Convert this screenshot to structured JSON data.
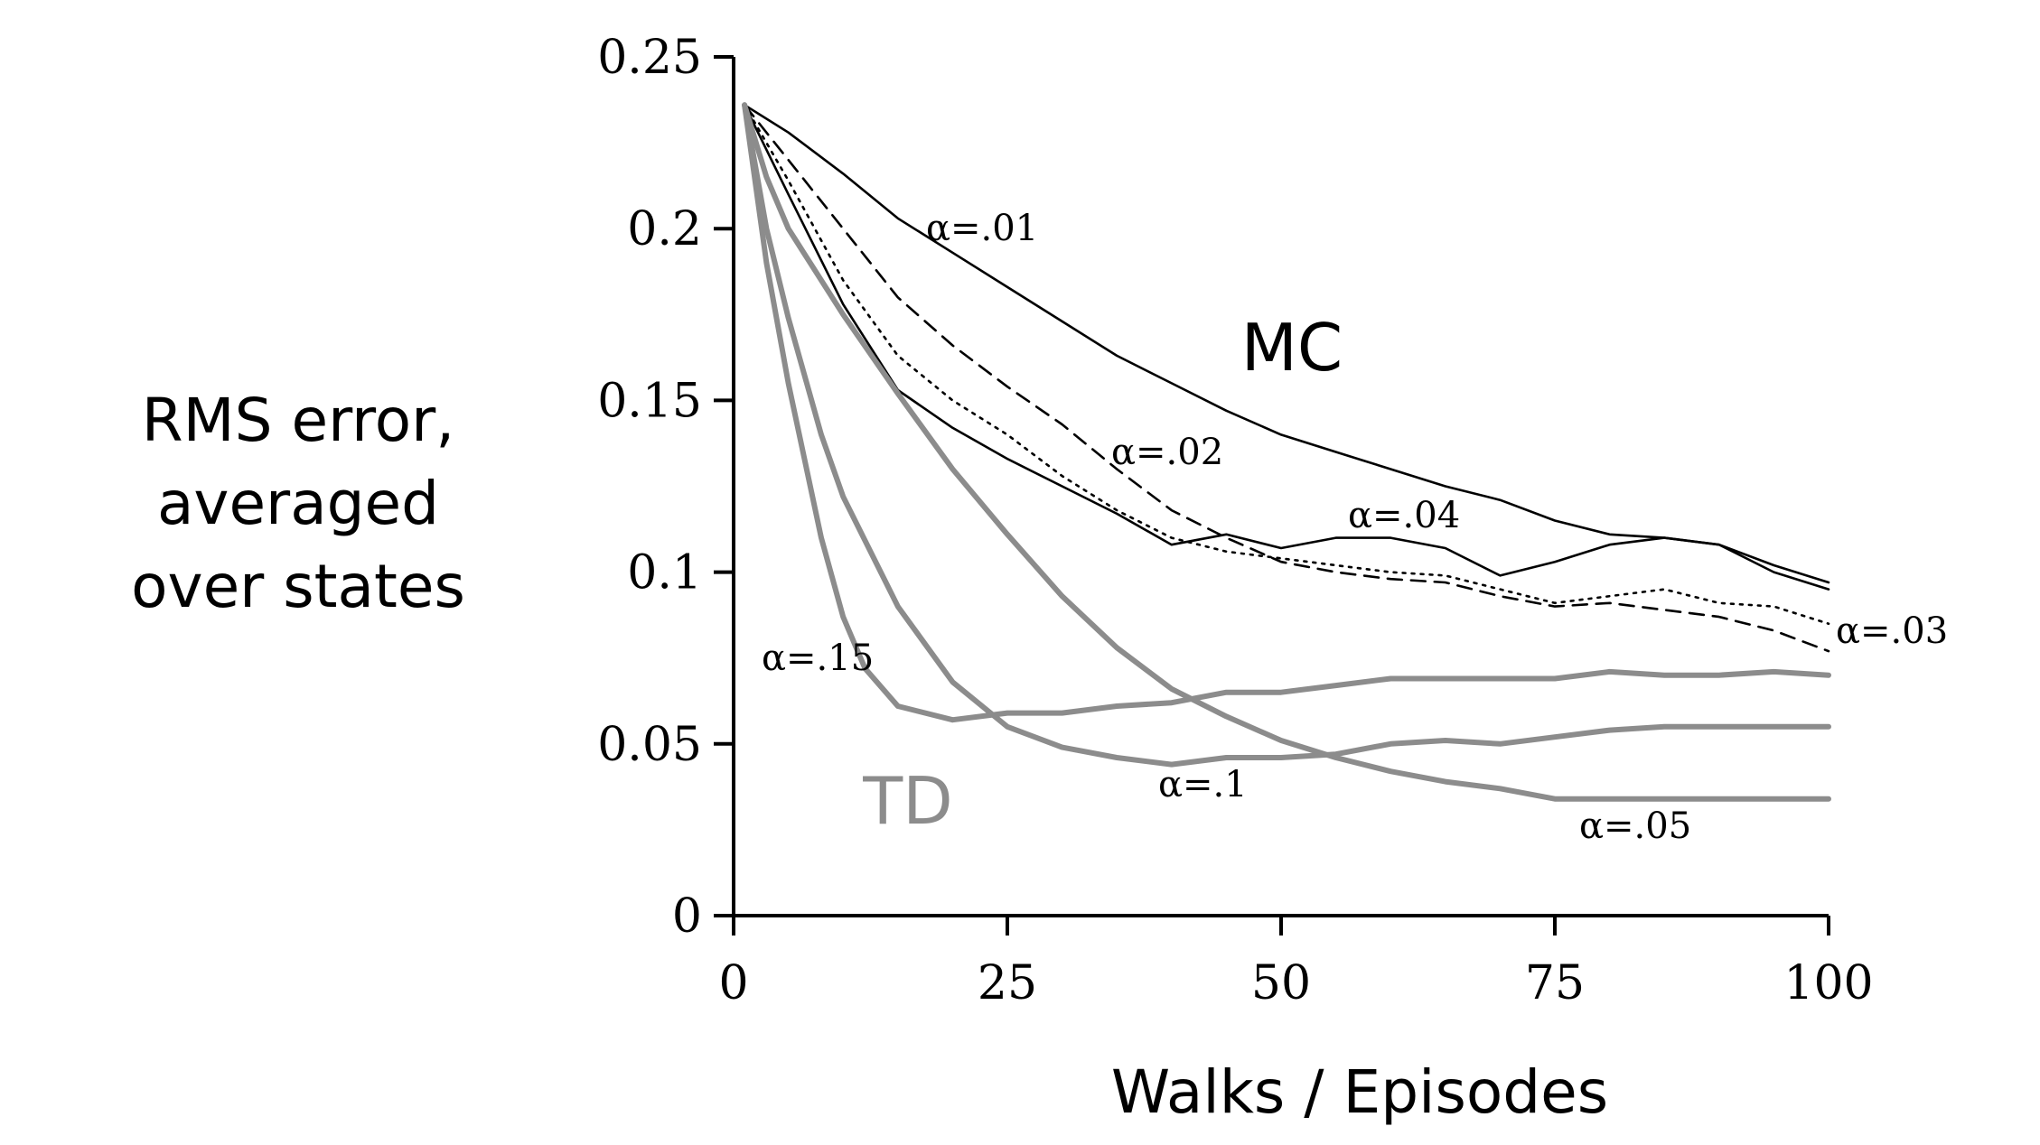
{
  "chart_data": {
    "type": "line",
    "title": "",
    "xlabel": "Walks / Episodes",
    "ylabel_lines": [
      "RMS error,",
      "averaged",
      "over states"
    ],
    "xlim": [
      0,
      100
    ],
    "ylim": [
      0,
      0.25
    ],
    "x_ticks": [
      0,
      25,
      50,
      75,
      100
    ],
    "x_tick_labels": [
      "0",
      "25",
      "50",
      "75",
      "100"
    ],
    "y_ticks": [
      0,
      0.05,
      0.1,
      0.15,
      0.2,
      0.25
    ],
    "y_tick_labels": [
      "0",
      "0.05",
      "0.1",
      "0.15",
      "0.2",
      "0.25"
    ],
    "grid": false,
    "group_labels": [
      {
        "text": "MC",
        "color": "#000000"
      },
      {
        "text": "TD",
        "color": "#8c8c8c"
      }
    ],
    "colors": {
      "mc": "#000000",
      "td": "#8c8c8c"
    },
    "series": [
      {
        "name": "α=.01",
        "group": "MC",
        "style": "solid",
        "x": [
          1,
          5,
          10,
          15,
          20,
          25,
          30,
          35,
          40,
          45,
          50,
          55,
          60,
          65,
          70,
          75,
          80,
          85,
          90,
          95,
          100
        ],
        "y": [
          0.236,
          0.228,
          0.216,
          0.203,
          0.193,
          0.183,
          0.173,
          0.163,
          0.155,
          0.147,
          0.14,
          0.135,
          0.13,
          0.125,
          0.121,
          0.115,
          0.111,
          0.11,
          0.108,
          0.102,
          0.097
        ]
      },
      {
        "name": "α=.02",
        "group": "MC",
        "style": "dashed",
        "x": [
          1,
          5,
          10,
          15,
          20,
          25,
          30,
          35,
          40,
          45,
          50,
          55,
          60,
          65,
          70,
          75,
          80,
          85,
          90,
          95,
          100
        ],
        "y": [
          0.236,
          0.22,
          0.2,
          0.18,
          0.166,
          0.154,
          0.143,
          0.13,
          0.118,
          0.11,
          0.103,
          0.1,
          0.098,
          0.097,
          0.093,
          0.09,
          0.091,
          0.089,
          0.087,
          0.083,
          0.077
        ]
      },
      {
        "name": "α=.03",
        "group": "MC",
        "style": "dotted",
        "x": [
          1,
          5,
          10,
          15,
          20,
          25,
          30,
          35,
          40,
          45,
          50,
          55,
          60,
          65,
          70,
          75,
          80,
          85,
          90,
          95,
          100
        ],
        "y": [
          0.236,
          0.214,
          0.185,
          0.163,
          0.15,
          0.14,
          0.128,
          0.118,
          0.11,
          0.106,
          0.104,
          0.102,
          0.1,
          0.099,
          0.095,
          0.091,
          0.093,
          0.095,
          0.091,
          0.09,
          0.085
        ]
      },
      {
        "name": "α=.04",
        "group": "MC",
        "style": "solid",
        "x": [
          1,
          5,
          10,
          15,
          20,
          25,
          30,
          35,
          40,
          45,
          50,
          55,
          60,
          65,
          70,
          75,
          80,
          85,
          90,
          95,
          100
        ],
        "y": [
          0.236,
          0.21,
          0.178,
          0.153,
          0.142,
          0.133,
          0.125,
          0.117,
          0.108,
          0.111,
          0.107,
          0.11,
          0.11,
          0.107,
          0.099,
          0.103,
          0.108,
          0.11,
          0.108,
          0.1,
          0.095
        ]
      },
      {
        "name": "α=.05",
        "group": "TD",
        "style": "solid",
        "x": [
          1,
          3,
          5,
          10,
          15,
          20,
          25,
          30,
          35,
          40,
          45,
          50,
          55,
          60,
          65,
          70,
          75,
          80,
          85,
          90,
          95,
          100
        ],
        "y": [
          0.236,
          0.215,
          0.2,
          0.175,
          0.152,
          0.13,
          0.111,
          0.093,
          0.078,
          0.066,
          0.058,
          0.051,
          0.046,
          0.042,
          0.039,
          0.037,
          0.034,
          0.034,
          0.034,
          0.034,
          0.034,
          0.034
        ]
      },
      {
        "name": "α=.1",
        "group": "TD",
        "style": "solid",
        "x": [
          1,
          3,
          5,
          8,
          10,
          15,
          20,
          25,
          30,
          35,
          40,
          45,
          50,
          55,
          60,
          65,
          70,
          75,
          80,
          85,
          90,
          95,
          100
        ],
        "y": [
          0.236,
          0.2,
          0.174,
          0.14,
          0.122,
          0.09,
          0.068,
          0.055,
          0.049,
          0.046,
          0.044,
          0.046,
          0.046,
          0.047,
          0.05,
          0.051,
          0.05,
          0.052,
          0.054,
          0.055,
          0.055,
          0.055,
          0.055
        ]
      },
      {
        "name": "α=.15",
        "group": "TD",
        "style": "solid",
        "x": [
          1,
          3,
          5,
          8,
          10,
          12,
          15,
          20,
          25,
          30,
          35,
          40,
          45,
          50,
          55,
          60,
          65,
          70,
          75,
          80,
          85,
          90,
          95,
          100
        ],
        "y": [
          0.236,
          0.19,
          0.155,
          0.11,
          0.087,
          0.072,
          0.061,
          0.057,
          0.059,
          0.059,
          0.061,
          0.062,
          0.065,
          0.065,
          0.067,
          0.069,
          0.069,
          0.069,
          0.069,
          0.071,
          0.07,
          0.07,
          0.071,
          0.07
        ]
      }
    ]
  }
}
